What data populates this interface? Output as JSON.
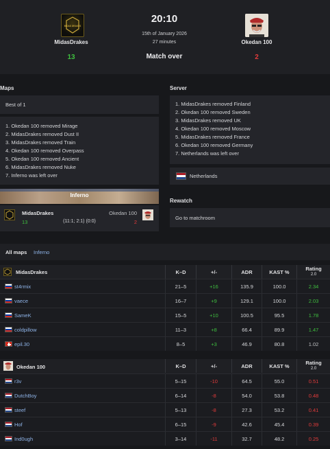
{
  "match": {
    "time": "20:10",
    "date": "15th of January 2026",
    "duration": "27 minutes",
    "status": "Match over",
    "team1": {
      "name": "MidasDrakes",
      "score": "13"
    },
    "team2": {
      "name": "Okedan 100",
      "score": "2"
    },
    "team1_logo_text": "MIDAS DRAKES"
  },
  "maps": {
    "title": "Maps",
    "format": "Best of 1",
    "vetos": [
      "1. Okedan 100 removed Mirage",
      "2. MidasDrakes removed Dust II",
      "3. MidasDrakes removed Train",
      "4. Okedan 100 removed Overpass",
      "5. Okedan 100 removed Ancient",
      "6. MidasDrakes removed Nuke",
      "7. Inferno was left over"
    ],
    "map_name": "Inferno",
    "map_team1": "MidasDrakes",
    "map_team2": "Okedan 100",
    "map_score1": "13",
    "map_score2": "2",
    "map_halves": "(11:1; 2:1) (0:0)"
  },
  "server": {
    "title": "Server",
    "vetos": [
      "1. MidasDrakes removed Finland",
      "2. Okedan 100 removed Sweden",
      "3. MidasDrakes removed UK",
      "4. Okedan 100 removed Moscow",
      "5. MidasDrakes removed France",
      "6. Okedan 100 removed Germany",
      "7. Netherlands was left over"
    ],
    "selected": "Netherlands"
  },
  "rewatch": {
    "title": "Rewatch",
    "link": "Go to matchroom"
  },
  "stats_tabs": {
    "all_maps": "All maps",
    "inferno": "Inferno"
  },
  "columns": [
    "K–D",
    "+/-",
    "ADR",
    "KAST %",
    "Rating",
    "2.0"
  ],
  "team1_stats": {
    "name": "MidasDrakes",
    "rows": [
      {
        "flag": "ru",
        "player": "st4rmix",
        "kd": "21–5",
        "pm": "+16",
        "adr": "135.9",
        "kast": "100.0",
        "rating": "2.34",
        "rc": "pos",
        "pc": "pos"
      },
      {
        "flag": "ru",
        "player": "vaece",
        "kd": "16–7",
        "pm": "+9",
        "adr": "129.1",
        "kast": "100.0",
        "rating": "2.03",
        "rc": "pos",
        "pc": "pos"
      },
      {
        "flag": "ru",
        "player": "SameK",
        "kd": "15–5",
        "pm": "+10",
        "adr": "100.5",
        "kast": "95.5",
        "rating": "1.78",
        "rc": "pos",
        "pc": "pos"
      },
      {
        "flag": "ru",
        "player": "coldpillow",
        "kd": "11–3",
        "pm": "+8",
        "adr": "66.4",
        "kast": "89.9",
        "rating": "1.47",
        "rc": "pos",
        "pc": "pos"
      },
      {
        "flag": "ch",
        "player": "epil.30",
        "kd": "8–5",
        "pm": "+3",
        "adr": "46.9",
        "kast": "80.8",
        "rating": "1.02",
        "rc": "neutral",
        "pc": "pos"
      }
    ]
  },
  "team2_stats": {
    "name": "Okedan 100",
    "rows": [
      {
        "flag": "nl",
        "player": "r3v",
        "kd": "5–15",
        "pm": "-10",
        "adr": "64.5",
        "kast": "55.0",
        "rating": "0.51",
        "rc": "neg",
        "pc": "neg"
      },
      {
        "flag": "nl",
        "player": "DutchBoy",
        "kd": "6–14",
        "pm": "-8",
        "adr": "54.0",
        "kast": "53.8",
        "rating": "0.48",
        "rc": "neg",
        "pc": "neg"
      },
      {
        "flag": "nl",
        "player": "steef",
        "kd": "5–13",
        "pm": "-8",
        "adr": "27.3",
        "kast": "53.2",
        "rating": "0.41",
        "rc": "neg",
        "pc": "neg"
      },
      {
        "flag": "nl",
        "player": "Hof",
        "kd": "6–15",
        "pm": "-9",
        "adr": "42.6",
        "kast": "45.4",
        "rating": "0.39",
        "rc": "neg",
        "pc": "neg"
      },
      {
        "flag": "nl",
        "player": "Ind0ugh",
        "kd": "3–14",
        "pm": "-11",
        "adr": "32.7",
        "kast": "48.2",
        "rating": "0.25",
        "rc": "neg",
        "pc": "neg"
      }
    ]
  }
}
